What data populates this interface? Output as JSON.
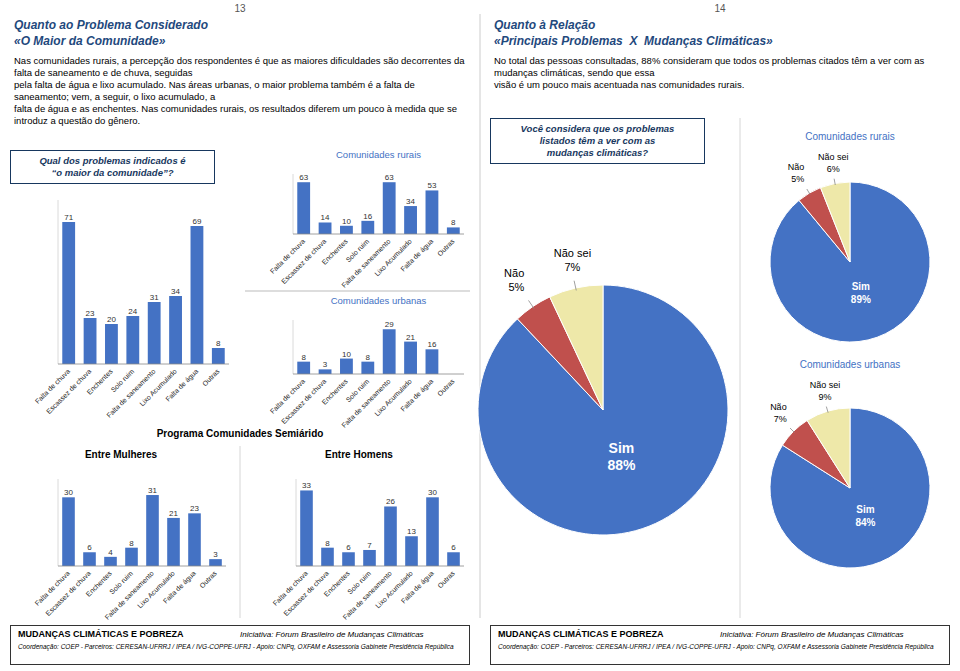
{
  "chart_data": [
    {
      "type": "bar",
      "title": "Qual dos problemas indicados é\n“o maior da comunidade”?",
      "categories": [
        "Falta de chuva",
        "Escassez de chuva",
        "Enchentes",
        "Solo ruim",
        "Falta de saneamento",
        "Lixo Acumulado",
        "Falta de água",
        "Outras"
      ],
      "values": [
        71,
        23,
        20,
        24,
        31,
        34,
        69,
        8
      ],
      "color": "#4472C4",
      "ylim": [
        0,
        82
      ],
      "data_labels": true,
      "tick_labels": "x",
      "grid": false,
      "annotations": [
        "13",
        "Quanto ao Problema Considerado",
        "«O Maior da Comunidade»",
        "Nas comunidades rurais, a percepção dos respondentes é que as maiores dificuldades são decorrentes da falta de saneamento e de chuva, seguidas\npela falta de água e lixo acumulado. Nas áreas urbanas, o maior problema também é a falta de saneamento; vem, a seguir, o lixo acumulado, a\nfalta de água e as enchentes. Nas comunidades rurais, os resultados diferem um pouco à medida que se introduz a questão do gênero.",
        "MUDANÇAS CLIMÁTICAS E POBREZA",
        "Iniciativa: Fórum Brasileiro de Mudanças Climáticas",
        "Coordenação: COEP - Parceiros: CERESAN-UFRRJ / IPEA / IVG-COPPE-UFRJ - Apoio: CNPq, OXFAM e Assessoria Gabinete Presidência República"
      ]
    },
    {
      "type": "bar",
      "title": "Comunidades rurais",
      "categories": [
        "Falta de chuva",
        "Escassez de chuva",
        "Enchentes",
        "Solo ruim",
        "Falta de saneamento",
        "Lixo Acumulado",
        "Falta de água",
        "Outras"
      ],
      "values": [
        63,
        14,
        10,
        16,
        63,
        34,
        53,
        8
      ],
      "color": "#4472C4",
      "ylim": [
        0,
        73
      ],
      "data_labels": true,
      "tick_labels": "x",
      "grid": false
    },
    {
      "type": "bar",
      "title": "Comunidades urbanas",
      "categories": [
        "Falta de chuva",
        "Escassez de chuva",
        "Enchentes",
        "Solo ruim",
        "Falta de saneamento",
        "Lixo Acumulado",
        "Falta de água",
        "Outras"
      ],
      "values": [
        8,
        3,
        10,
        8,
        29,
        21,
        16,
        0
      ],
      "value_labels": [
        "8",
        "3",
        "10",
        "8",
        "29",
        "21",
        "16",
        null
      ],
      "color": "#4472C4",
      "ylim": [
        0,
        35
      ],
      "data_labels": true,
      "tick_labels": "x",
      "grid": false
    },
    {
      "type": "bar",
      "title": "Entre Mulheres",
      "categories": [
        "Falta de chuva",
        "Escassez de chuva",
        "Enchentes",
        "Solo ruim",
        "Falta de saneamento",
        "Lixo Acumulado",
        "Falta de água",
        "Outras"
      ],
      "values": [
        30,
        6,
        4,
        8,
        31,
        21,
        23,
        3
      ],
      "color": "#4472C4",
      "ylim": [
        0,
        38
      ],
      "data_labels": true,
      "tick_labels": "x",
      "grid": false,
      "annotations": [
        "Programa Comunidades Semiárido"
      ]
    },
    {
      "type": "bar",
      "title": "Entre Homens",
      "categories": [
        "Falta de chuva",
        "Escassez de chuva",
        "Enchentes",
        "Solo ruim",
        "Falta de saneamento",
        "Lixo Acumulado",
        "Falta de água",
        "Outras"
      ],
      "values": [
        33,
        8,
        6,
        7,
        26,
        13,
        30,
        6
      ],
      "color": "#4472C4",
      "ylim": [
        0,
        38
      ],
      "data_labels": true,
      "tick_labels": "x",
      "grid": false
    },
    {
      "type": "pie",
      "title": "Você considera que os problemas\nlistados têm a ver com as\nmudanças climáticas?",
      "categories": [
        "Sim",
        "Não",
        "Não sei"
      ],
      "values": [
        88,
        5,
        7
      ],
      "value_labels": [
        "88%",
        "5%",
        "7%"
      ],
      "colors": [
        "#4472C4",
        "#C0504D",
        "#EEE8A9"
      ],
      "data_labels": true,
      "annotations": [
        "14",
        "Quanto à Relação",
        "«Principais Problemas  X  Mudanças Climáticas»",
        "No total das pessoas consultadas, 88% consideram que todos os problemas citados têm a ver com as mudanças climáticas, sendo que essa\nvisão é um pouco mais acentuada nas comunidades rurais.",
        "MUDANÇAS CLIMÁTICAS E POBREZA",
        "Iniciativa: Fórum Brasileiro de Mudanças Climáticas",
        "Coordenação: COEP - Parceiros: CERESAN-UFRRJ / IPEA / IVG-COPPE-UFRJ - Apoio: CNPq, OXFAM e Assessoria Gabinete Presidência República"
      ]
    },
    {
      "type": "pie",
      "title": "Comunidades rurais",
      "categories": [
        "Sim",
        "Não",
        "Não sei"
      ],
      "values": [
        89,
        5,
        6
      ],
      "value_labels": [
        "89%",
        "5%",
        "6%"
      ],
      "colors": [
        "#4472C4",
        "#C0504D",
        "#EEE8A9"
      ],
      "data_labels": true
    },
    {
      "type": "pie",
      "title": "Comunidades urbanas",
      "categories": [
        "Sim",
        "Não",
        "Não sei"
      ],
      "values": [
        84,
        7,
        9
      ],
      "value_labels": [
        "84%",
        "7%",
        "9%"
      ],
      "colors": [
        "#4472C4",
        "#C0504D",
        "#EEE8A9"
      ],
      "data_labels": true
    }
  ]
}
